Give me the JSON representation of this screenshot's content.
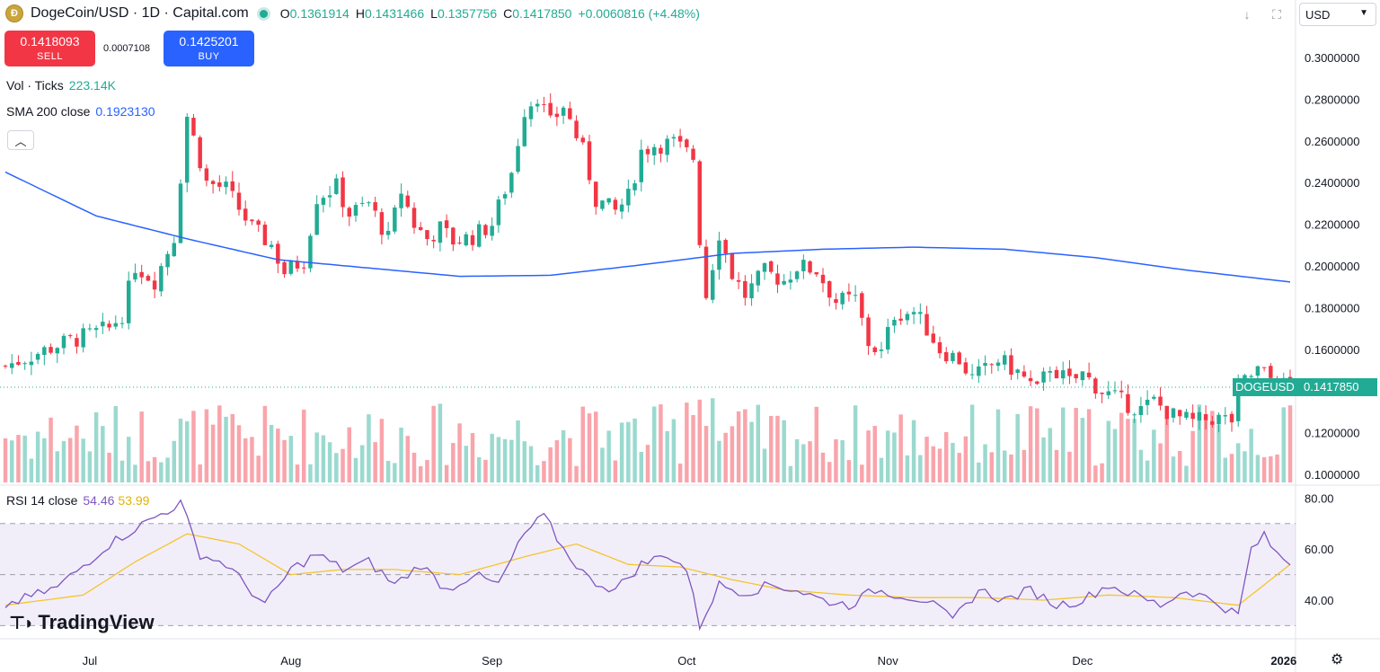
{
  "header": {
    "symbol_title": "DogeCoin/USD · 1D · Capital.com",
    "coin_icon": "dogecoin-icon",
    "ohlc": {
      "open_label": "O",
      "open": "0.1361914",
      "high_label": "H",
      "high": "0.1431466",
      "low_label": "L",
      "low": "0.1357756",
      "close_label": "C",
      "close": "0.1417850",
      "change": "+0.0060816 (+4.48%)"
    }
  },
  "trade": {
    "sell_price": "0.1418093",
    "sell_label": "SELL",
    "spread": "0.0007108",
    "buy_price": "0.1425201",
    "buy_label": "BUY"
  },
  "indicators": {
    "volume_label": "Vol · Ticks",
    "volume_value": "223.14K",
    "sma_label": "SMA 200 close",
    "sma_value": "0.1923130",
    "rsi_label": "RSI 14 close",
    "rsi_value": "54.46",
    "rsi_ma_value": "53.99"
  },
  "toolbar": {
    "currency": "USD",
    "download_icon": "download-icon",
    "fullscreen_icon": "fullscreen-icon"
  },
  "brand": {
    "logo_text": "TradingView"
  },
  "last_price": {
    "symbol": "DOGEUSD",
    "price": "0.1417850"
  },
  "colors": {
    "up": "#22ab94",
    "down": "#f23645",
    "sma": "#2962ff",
    "rsi": "#7e57c2",
    "rsi_ma": "#f4c430"
  },
  "chart_data": {
    "type": "candlestick",
    "price_axis": {
      "ticks": [
        "0.3000000",
        "0.2800000",
        "0.2600000",
        "0.2400000",
        "0.2200000",
        "0.2000000",
        "0.1800000",
        "0.1600000",
        "0.1200000",
        "0.1000000"
      ],
      "range": [
        0.095,
        0.312
      ]
    },
    "rsi_axis": {
      "ticks": [
        "80.00",
        "60.00",
        "40.00"
      ],
      "range": [
        28,
        82
      ],
      "bands": [
        30,
        50,
        70
      ]
    },
    "time_axis": {
      "ticks": [
        "Jul",
        "Aug",
        "Sep",
        "Oct",
        "Nov",
        "Dec",
        "2026"
      ],
      "tick_day_index": [
        13,
        44,
        75,
        105,
        136,
        166,
        197
      ]
    },
    "series_keypoints": [
      [
        0,
        0.152
      ],
      [
        8,
        0.162
      ],
      [
        16,
        0.17
      ],
      [
        18,
        0.177
      ],
      [
        20,
        0.2
      ],
      [
        23,
        0.193
      ],
      [
        26,
        0.214
      ],
      [
        28,
        0.272
      ],
      [
        31,
        0.24
      ],
      [
        34,
        0.237
      ],
      [
        38,
        0.218
      ],
      [
        41,
        0.21
      ],
      [
        43,
        0.197
      ],
      [
        46,
        0.203
      ],
      [
        48,
        0.233
      ],
      [
        51,
        0.238
      ],
      [
        53,
        0.225
      ],
      [
        56,
        0.23
      ],
      [
        59,
        0.213
      ],
      [
        61,
        0.236
      ],
      [
        63,
        0.22
      ],
      [
        65,
        0.213
      ],
      [
        67,
        0.218
      ],
      [
        69,
        0.212
      ],
      [
        72,
        0.214
      ],
      [
        75,
        0.22
      ],
      [
        78,
        0.245
      ],
      [
        80,
        0.275
      ],
      [
        82,
        0.282
      ],
      [
        84,
        0.268
      ],
      [
        86,
        0.277
      ],
      [
        89,
        0.255
      ],
      [
        91,
        0.232
      ],
      [
        94,
        0.226
      ],
      [
        96,
        0.233
      ],
      [
        98,
        0.255
      ],
      [
        100,
        0.258
      ],
      [
        103,
        0.259
      ],
      [
        106,
        0.252
      ],
      [
        107,
        0.213
      ],
      [
        108,
        0.186
      ],
      [
        110,
        0.216
      ],
      [
        112,
        0.196
      ],
      [
        114,
        0.186
      ],
      [
        117,
        0.197
      ],
      [
        120,
        0.193
      ],
      [
        122,
        0.2
      ],
      [
        125,
        0.198
      ],
      [
        128,
        0.183
      ],
      [
        131,
        0.184
      ],
      [
        133,
        0.163
      ],
      [
        135,
        0.158
      ],
      [
        137,
        0.177
      ],
      [
        140,
        0.178
      ],
      [
        142,
        0.17
      ],
      [
        144,
        0.16
      ],
      [
        147,
        0.155
      ],
      [
        149,
        0.146
      ],
      [
        151,
        0.15
      ],
      [
        153,
        0.155
      ],
      [
        156,
        0.149
      ],
      [
        159,
        0.14
      ],
      [
        161,
        0.152
      ],
      [
        164,
        0.144
      ],
      [
        166,
        0.148
      ],
      [
        169,
        0.14
      ],
      [
        172,
        0.135
      ],
      [
        175,
        0.131
      ],
      [
        177,
        0.135
      ],
      [
        180,
        0.128
      ],
      [
        183,
        0.125
      ],
      [
        186,
        0.127
      ],
      [
        189,
        0.126
      ],
      [
        190,
        0.142
      ],
      [
        193,
        0.15
      ],
      [
        196,
        0.144
      ],
      [
        198,
        0.142
      ]
    ],
    "sma200_keypoints": [
      [
        0,
        0.245
      ],
      [
        14,
        0.224
      ],
      [
        28,
        0.213
      ],
      [
        42,
        0.203
      ],
      [
        56,
        0.199
      ],
      [
        70,
        0.195
      ],
      [
        84,
        0.1955
      ],
      [
        98,
        0.2005
      ],
      [
        112,
        0.206
      ],
      [
        126,
        0.208
      ],
      [
        140,
        0.209
      ],
      [
        154,
        0.208
      ],
      [
        168,
        0.204
      ],
      [
        182,
        0.198
      ],
      [
        198,
        0.1923
      ]
    ],
    "rsi_keypoints": [
      [
        0,
        38
      ],
      [
        8,
        45
      ],
      [
        16,
        62
      ],
      [
        22,
        71
      ],
      [
        27,
        78
      ],
      [
        30,
        58
      ],
      [
        34,
        54
      ],
      [
        40,
        38
      ],
      [
        44,
        52
      ],
      [
        48,
        58
      ],
      [
        52,
        52
      ],
      [
        56,
        55
      ],
      [
        60,
        46
      ],
      [
        64,
        54
      ],
      [
        68,
        44
      ],
      [
        72,
        50
      ],
      [
        76,
        46
      ],
      [
        80,
        66
      ],
      [
        83,
        73
      ],
      [
        86,
        60
      ],
      [
        90,
        48
      ],
      [
        94,
        44
      ],
      [
        98,
        54
      ],
      [
        102,
        58
      ],
      [
        105,
        52
      ],
      [
        107,
        30
      ],
      [
        110,
        46
      ],
      [
        114,
        43
      ],
      [
        118,
        46
      ],
      [
        122,
        44
      ],
      [
        126,
        40
      ],
      [
        130,
        38
      ],
      [
        134,
        44
      ],
      [
        138,
        42
      ],
      [
        142,
        40
      ],
      [
        146,
        32
      ],
      [
        150,
        44
      ],
      [
        154,
        40
      ],
      [
        158,
        44
      ],
      [
        162,
        38
      ],
      [
        166,
        40
      ],
      [
        170,
        46
      ],
      [
        174,
        42
      ],
      [
        178,
        38
      ],
      [
        182,
        44
      ],
      [
        186,
        40
      ],
      [
        190,
        34
      ],
      [
        192,
        60
      ],
      [
        194,
        65
      ],
      [
        196,
        58
      ],
      [
        198,
        54.46
      ]
    ],
    "rsi_ma_keypoints": [
      [
        0,
        38
      ],
      [
        12,
        42
      ],
      [
        20,
        55
      ],
      [
        28,
        66
      ],
      [
        36,
        62
      ],
      [
        44,
        50
      ],
      [
        52,
        52
      ],
      [
        60,
        52
      ],
      [
        70,
        50
      ],
      [
        80,
        57
      ],
      [
        88,
        62
      ],
      [
        96,
        54
      ],
      [
        104,
        53
      ],
      [
        112,
        48
      ],
      [
        120,
        44
      ],
      [
        130,
        42
      ],
      [
        140,
        41
      ],
      [
        150,
        41
      ],
      [
        160,
        40
      ],
      [
        170,
        42
      ],
      [
        180,
        41
      ],
      [
        190,
        38
      ],
      [
        198,
        53.99
      ]
    ]
  }
}
